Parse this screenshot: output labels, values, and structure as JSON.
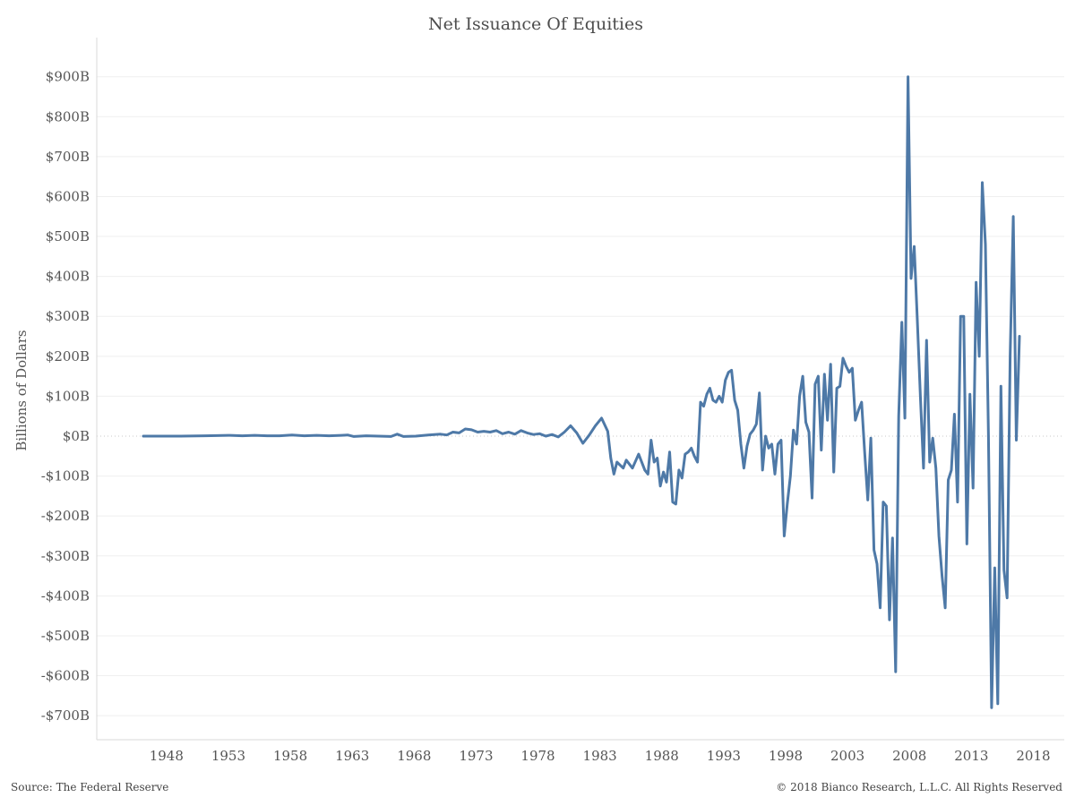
{
  "title": "Net Issuance Of Equities",
  "footer": {
    "source": "Source: The Federal Reserve",
    "copyright": "© 2018 Bianco Research, L.L.C. All Rights Reserved"
  },
  "colors": {
    "series": "#4e79a7"
  },
  "chart_data": {
    "type": "line",
    "title": "Net Issuance Of Equities",
    "xlabel": "",
    "ylabel": "Billions of Dollars",
    "xlim": [
      1946,
      2020
    ],
    "ylim": [
      -740,
      940
    ],
    "grid": true,
    "x_ticks": [
      1948,
      1953,
      1958,
      1963,
      1968,
      1973,
      1978,
      1983,
      1988,
      1993,
      1998,
      2003,
      2008,
      2013,
      2018
    ],
    "y_ticks": [
      {
        "value": 900,
        "label": "$900B"
      },
      {
        "value": 800,
        "label": "$800B"
      },
      {
        "value": 700,
        "label": "$700B"
      },
      {
        "value": 600,
        "label": "$600B"
      },
      {
        "value": 500,
        "label": "$500B"
      },
      {
        "value": 400,
        "label": "$400B"
      },
      {
        "value": 300,
        "label": "$300B"
      },
      {
        "value": 200,
        "label": "$200B"
      },
      {
        "value": 100,
        "label": "$100B"
      },
      {
        "value": 0,
        "label": "$0B"
      },
      {
        "value": -100,
        "label": "-$100B"
      },
      {
        "value": -200,
        "label": "-$200B"
      },
      {
        "value": -300,
        "label": "-$300B"
      },
      {
        "value": -400,
        "label": "-$400B"
      },
      {
        "value": -500,
        "label": "-$500B"
      },
      {
        "value": -600,
        "label": "-$600B"
      },
      {
        "value": -700,
        "label": "-$700B"
      }
    ],
    "series": [
      {
        "points": [
          [
            1947.0,
            0
          ],
          [
            1948.0,
            0
          ],
          [
            1950.0,
            0
          ],
          [
            1952.0,
            1
          ],
          [
            1954.0,
            2
          ],
          [
            1955.0,
            1
          ],
          [
            1956.0,
            2
          ],
          [
            1957.0,
            1
          ],
          [
            1958.0,
            1
          ],
          [
            1959.0,
            3
          ],
          [
            1960.0,
            1
          ],
          [
            1961.0,
            2
          ],
          [
            1962.0,
            1
          ],
          [
            1963.0,
            2
          ],
          [
            1963.5,
            3
          ],
          [
            1964.0,
            -1
          ],
          [
            1965.0,
            1
          ],
          [
            1966.0,
            0
          ],
          [
            1967.0,
            -1
          ],
          [
            1967.5,
            5
          ],
          [
            1968.0,
            -1
          ],
          [
            1969.0,
            0
          ],
          [
            1970.0,
            3
          ],
          [
            1971.0,
            5
          ],
          [
            1971.5,
            3
          ],
          [
            1972.0,
            10
          ],
          [
            1972.5,
            8
          ],
          [
            1973.0,
            18
          ],
          [
            1973.5,
            16
          ],
          [
            1974.0,
            10
          ],
          [
            1974.5,
            12
          ],
          [
            1975.0,
            10
          ],
          [
            1975.5,
            14
          ],
          [
            1976.0,
            6
          ],
          [
            1976.5,
            10
          ],
          [
            1977.0,
            5
          ],
          [
            1977.5,
            14
          ],
          [
            1978.0,
            8
          ],
          [
            1978.5,
            4
          ],
          [
            1979.0,
            6
          ],
          [
            1979.5,
            0
          ],
          [
            1980.0,
            4
          ],
          [
            1980.5,
            -2
          ],
          [
            1981.0,
            10
          ],
          [
            1981.5,
            26
          ],
          [
            1982.0,
            8
          ],
          [
            1982.5,
            -18
          ],
          [
            1983.0,
            2
          ],
          [
            1983.5,
            26
          ],
          [
            1984.0,
            45
          ],
          [
            1984.5,
            12
          ],
          [
            1984.75,
            -55
          ],
          [
            1985.0,
            -95
          ],
          [
            1985.25,
            -65
          ],
          [
            1985.75,
            -80
          ],
          [
            1986.0,
            -60
          ],
          [
            1986.5,
            -80
          ],
          [
            1987.0,
            -45
          ],
          [
            1987.5,
            -85
          ],
          [
            1987.75,
            -95
          ],
          [
            1988.0,
            -10
          ],
          [
            1988.25,
            -65
          ],
          [
            1988.5,
            -55
          ],
          [
            1988.75,
            -125
          ],
          [
            1989.0,
            -90
          ],
          [
            1989.25,
            -115
          ],
          [
            1989.5,
            -40
          ],
          [
            1989.75,
            -165
          ],
          [
            1990.0,
            -170
          ],
          [
            1990.25,
            -85
          ],
          [
            1990.5,
            -105
          ],
          [
            1990.75,
            -45
          ],
          [
            1991.0,
            -40
          ],
          [
            1991.25,
            -30
          ],
          [
            1991.5,
            -50
          ],
          [
            1991.75,
            -65
          ],
          [
            1992.0,
            85
          ],
          [
            1992.25,
            75
          ],
          [
            1992.5,
            105
          ],
          [
            1992.75,
            120
          ],
          [
            1993.0,
            90
          ],
          [
            1993.25,
            85
          ],
          [
            1993.5,
            100
          ],
          [
            1993.75,
            85
          ],
          [
            1994.0,
            140
          ],
          [
            1994.25,
            160
          ],
          [
            1994.5,
            165
          ],
          [
            1994.75,
            90
          ],
          [
            1995.0,
            65
          ],
          [
            1995.25,
            -20
          ],
          [
            1995.5,
            -80
          ],
          [
            1995.75,
            -25
          ],
          [
            1996.0,
            5
          ],
          [
            1996.25,
            15
          ],
          [
            1996.5,
            30
          ],
          [
            1996.75,
            108
          ],
          [
            1997.0,
            -85
          ],
          [
            1997.25,
            0
          ],
          [
            1997.5,
            -30
          ],
          [
            1997.75,
            -20
          ],
          [
            1998.0,
            -95
          ],
          [
            1998.25,
            -20
          ],
          [
            1998.5,
            -10
          ],
          [
            1998.75,
            -250
          ],
          [
            1999.0,
            -170
          ],
          [
            1999.25,
            -100
          ],
          [
            1999.5,
            15
          ],
          [
            1999.75,
            -20
          ],
          [
            2000.0,
            100
          ],
          [
            2000.25,
            150
          ],
          [
            2000.5,
            35
          ],
          [
            2000.75,
            10
          ],
          [
            2001.0,
            -155
          ],
          [
            2001.25,
            130
          ],
          [
            2001.5,
            150
          ],
          [
            2001.75,
            -35
          ],
          [
            2002.0,
            155
          ],
          [
            2002.25,
            40
          ],
          [
            2002.5,
            180
          ],
          [
            2002.75,
            -90
          ],
          [
            2003.0,
            120
          ],
          [
            2003.25,
            125
          ],
          [
            2003.5,
            195
          ],
          [
            2003.75,
            175
          ],
          [
            2004.0,
            160
          ],
          [
            2004.25,
            170
          ],
          [
            2004.5,
            40
          ],
          [
            2004.75,
            65
          ],
          [
            2005.0,
            85
          ],
          [
            2005.25,
            -40
          ],
          [
            2005.5,
            -160
          ],
          [
            2005.75,
            -5
          ],
          [
            2006.0,
            -285
          ],
          [
            2006.25,
            -320
          ],
          [
            2006.5,
            -430
          ],
          [
            2006.75,
            -165
          ],
          [
            2007.0,
            -175
          ],
          [
            2007.25,
            -460
          ],
          [
            2007.5,
            -255
          ],
          [
            2007.75,
            -590
          ],
          [
            2008.0,
            50
          ],
          [
            2008.25,
            285
          ],
          [
            2008.5,
            45
          ],
          [
            2008.75,
            900
          ],
          [
            2009.0,
            395
          ],
          [
            2009.25,
            475
          ],
          [
            2009.5,
            290
          ],
          [
            2009.75,
            100
          ],
          [
            2010.0,
            -80
          ],
          [
            2010.25,
            240
          ],
          [
            2010.5,
            -65
          ],
          [
            2010.75,
            -5
          ],
          [
            2011.0,
            -80
          ],
          [
            2011.25,
            -250
          ],
          [
            2011.5,
            -350
          ],
          [
            2011.75,
            -430
          ],
          [
            2012.0,
            -110
          ],
          [
            2012.25,
            -85
          ],
          [
            2012.5,
            55
          ],
          [
            2012.75,
            -165
          ],
          [
            2013.0,
            300
          ],
          [
            2013.25,
            300
          ],
          [
            2013.5,
            -270
          ],
          [
            2013.75,
            105
          ],
          [
            2014.0,
            -130
          ],
          [
            2014.25,
            385
          ],
          [
            2014.5,
            200
          ],
          [
            2014.75,
            635
          ],
          [
            2015.0,
            480
          ],
          [
            2015.25,
            0
          ],
          [
            2015.5,
            -680
          ],
          [
            2015.75,
            -330
          ],
          [
            2016.0,
            -670
          ],
          [
            2016.25,
            125
          ],
          [
            2016.5,
            -335
          ],
          [
            2016.75,
            -405
          ],
          [
            2017.0,
            200
          ],
          [
            2017.25,
            550
          ],
          [
            2017.5,
            -10
          ],
          [
            2017.75,
            250
          ]
        ]
      }
    ]
  }
}
